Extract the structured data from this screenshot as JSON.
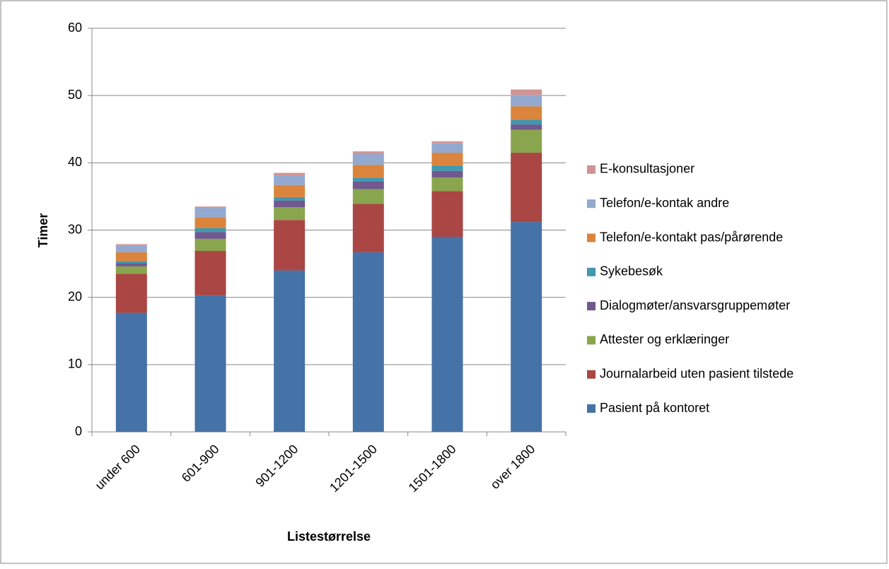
{
  "chart_data": {
    "type": "stacked_bar",
    "xlabel": "Listestørrelse",
    "ylabel": "Timer",
    "categories": [
      "under 600",
      "601-900",
      "901-1200",
      "1201-1500",
      "1501-1800",
      "over 1800"
    ],
    "series": [
      {
        "name": "Pasient på kontoret",
        "color": "#4572A7",
        "values": [
          17.7,
          20.3,
          24.0,
          26.7,
          29.0,
          31.2
        ]
      },
      {
        "name": "Journalarbeid uten pasient tilstede",
        "color": "#AA4643",
        "values": [
          5.8,
          6.6,
          7.5,
          7.2,
          6.8,
          10.3
        ]
      },
      {
        "name": "Attester og erklæringer",
        "color": "#89A54E",
        "values": [
          1.1,
          1.8,
          1.9,
          2.2,
          2.0,
          3.4
        ]
      },
      {
        "name": "Dialogmøter/ansvarsgruppemøter",
        "color": "#71588F",
        "values": [
          0.5,
          1.0,
          1.0,
          1.1,
          1.0,
          0.8
        ]
      },
      {
        "name": "Sykebesøk",
        "color": "#4198AF",
        "values": [
          0.3,
          0.6,
          0.5,
          0.6,
          0.8,
          0.7
        ]
      },
      {
        "name": "Telefon/e-kontakt pas/pårørende",
        "color": "#DB843D",
        "values": [
          1.3,
          1.6,
          1.8,
          1.9,
          1.9,
          2.0
        ]
      },
      {
        "name": "Telefon/e-kontak andre",
        "color": "#93A9CF",
        "values": [
          1.0,
          1.4,
          1.4,
          1.6,
          1.4,
          1.7
        ]
      },
      {
        "name": "E-konsultasjoner",
        "color": "#D19392",
        "values": [
          0.2,
          0.2,
          0.4,
          0.4,
          0.3,
          0.8
        ]
      }
    ],
    "ylim": [
      0,
      60
    ],
    "yticks": [
      0,
      10,
      20,
      30,
      40,
      50,
      60
    ],
    "grid": true,
    "legend": "right"
  }
}
